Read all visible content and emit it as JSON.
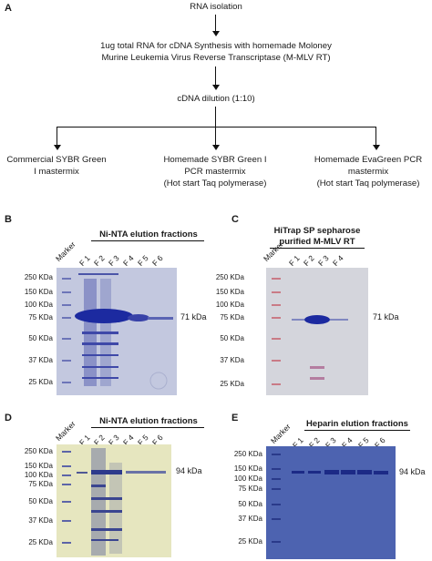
{
  "panel_a": {
    "letter": "A",
    "step1": "RNA isolation",
    "step2_line1": "1ug total RNA for cDNA Synthesis with homemade Moloney",
    "step2_line2": "Murine Leukemia Virus Reverse Transcriptase (M-MLV RT)",
    "step3": "cDNA dilution (1:10)",
    "branch_left_line1": "Commercial SYBR Green",
    "branch_left_line2": "I mastermix",
    "branch_mid_line1": "Homemade SYBR Green I",
    "branch_mid_line2": "PCR mastermix",
    "branch_mid_line3": "(Hot start Taq polymerase)",
    "branch_right_line1": "Homemade EvaGreen PCR",
    "branch_right_line2": "mastermix",
    "branch_right_line3": "(Hot start Taq polymerase)"
  },
  "panel_b": {
    "letter": "B",
    "title": "Ni-NTA elution fractions",
    "lanes": [
      "Marker",
      "F 1",
      "F 2",
      "F 3",
      "F 4",
      "F 5",
      "F 6"
    ],
    "mw": [
      "250 KDa",
      "150 KDa",
      "100 KDa",
      "75 KDa",
      "50 KDa",
      "37 KDa",
      "25 KDa"
    ],
    "band_label": "71 kDa",
    "gel_color": "#c3c8df"
  },
  "panel_c": {
    "letter": "C",
    "title_line1": "HiTrap SP sepharose",
    "title_line2": "purified M-MLV RT",
    "lanes": [
      "Marker",
      "F 1",
      "F 2",
      "F 3",
      "F 4"
    ],
    "mw": [
      "250 KDa",
      "150 KDa",
      "100 KDa",
      "75 KDa",
      "50 KDa",
      "37 KDa",
      "25 KDa"
    ],
    "band_label": "71 kDa",
    "gel_color": "#d4d5dc"
  },
  "panel_d": {
    "letter": "D",
    "title": "Ni-NTA elution fractions",
    "lanes": [
      "Marker",
      "F 1",
      "F 2",
      "F 3",
      "F 4",
      "F 5",
      "F 6"
    ],
    "mw": [
      "250 KDa",
      "150 KDa",
      "100 KDa",
      "75 KDa",
      "50 KDa",
      "37 KDa",
      "25 KDa"
    ],
    "band_label": "94 kDa",
    "gel_color": "#e6e6bf"
  },
  "panel_e": {
    "letter": "E",
    "title": "Heparin elution fractions",
    "lanes": [
      "Marker",
      "F 1",
      "F 2",
      "F 3",
      "F 4",
      "F 5",
      "F 6"
    ],
    "mw": [
      "250 KDa",
      "150 KDa",
      "100 KDa",
      "75 KDa",
      "50 KDa",
      "37 KDa",
      "25 KDa"
    ],
    "band_label": "94 kDa",
    "gel_color": "#4d63b0"
  }
}
